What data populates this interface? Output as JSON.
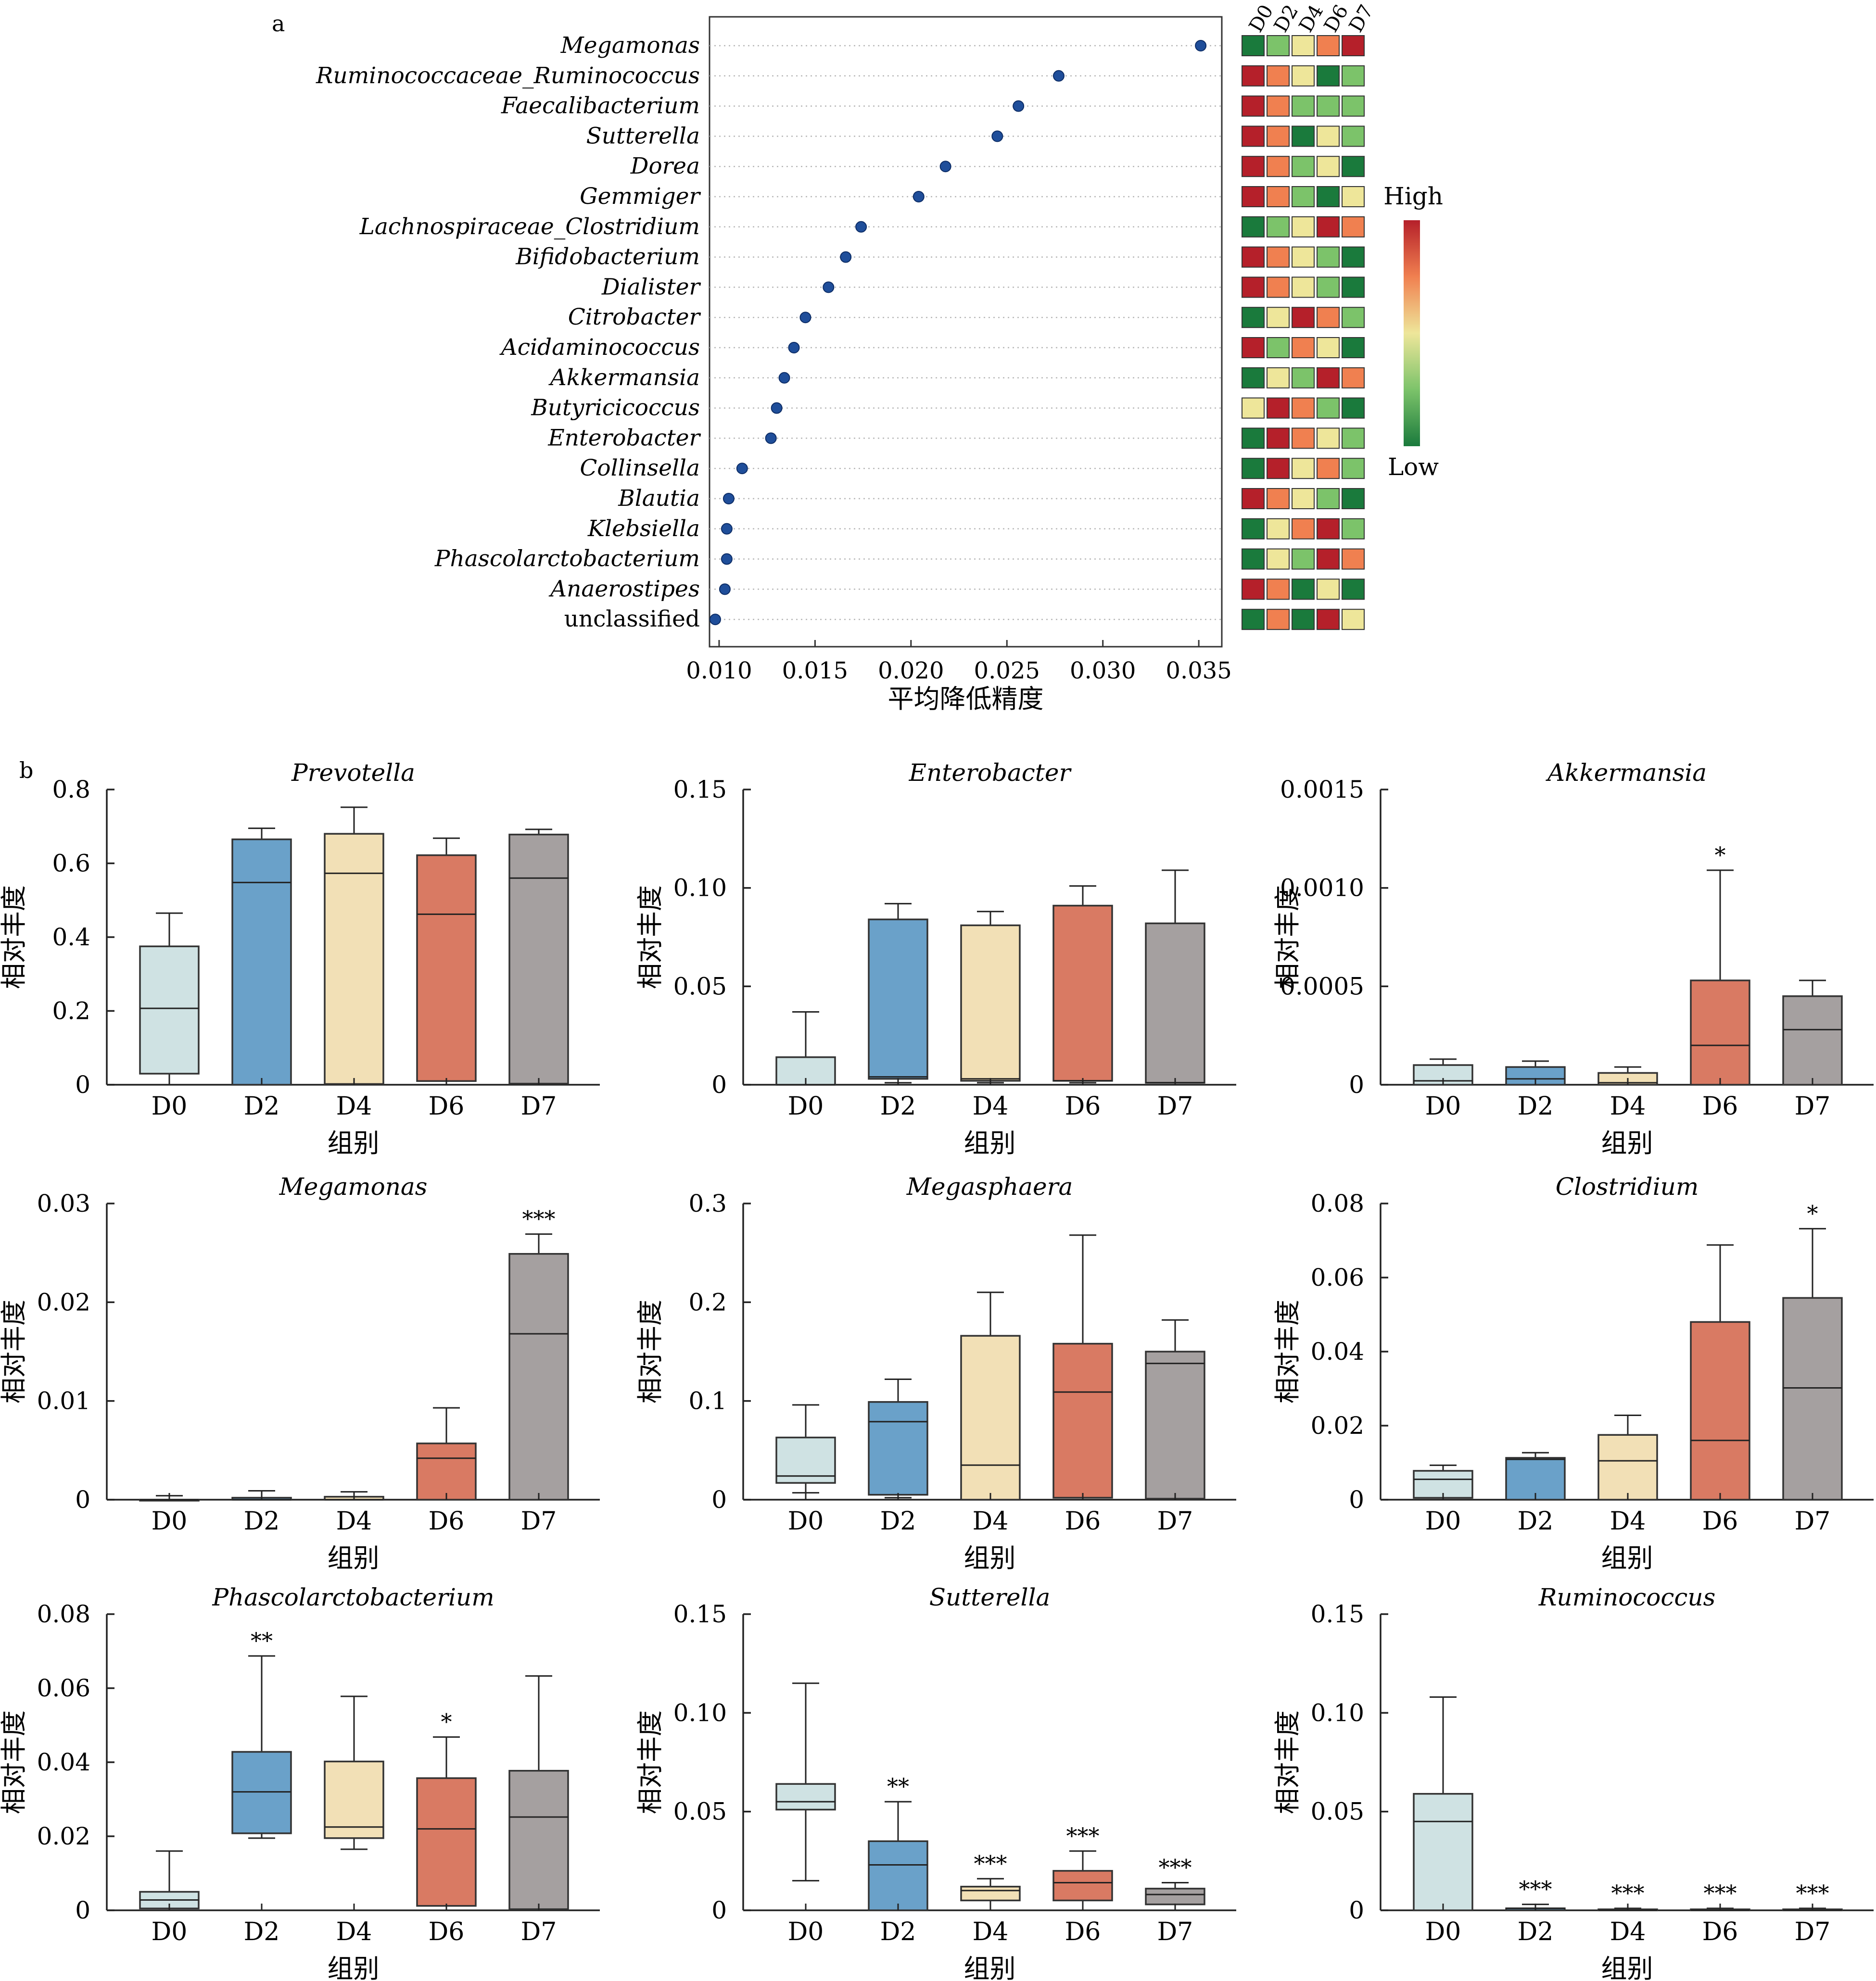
{
  "chart_data": [
    {
      "panel_label": "a",
      "type": "scatter",
      "subtype": "dot-plot with heatmap",
      "xlabel": "平均降低精度",
      "xlim": [
        0.0095,
        0.0362
      ],
      "xticks": [
        "0.010",
        "0.015",
        "0.020",
        "0.025",
        "0.030",
        "0.035"
      ],
      "xtick_values": [
        0.01,
        0.015,
        0.02,
        0.025,
        0.03,
        0.035
      ],
      "grid": "dotted horizontal guide lines",
      "point_color": "#1f4e9a",
      "taxa": [
        {
          "name": "Megamonas",
          "italic": true,
          "value": 0.0351,
          "heat": [
            0,
            1,
            2,
            3,
            4
          ]
        },
        {
          "name": "Ruminococcaceae_Ruminococcus",
          "italic": true,
          "value": 0.0277,
          "heat": [
            4,
            3,
            2,
            0,
            1
          ]
        },
        {
          "name": "Faecalibacterium",
          "italic": true,
          "value": 0.0256,
          "heat": [
            4,
            3,
            1,
            1,
            1
          ]
        },
        {
          "name": "Sutterella",
          "italic": true,
          "value": 0.0245,
          "heat": [
            4,
            3,
            0,
            2,
            1
          ]
        },
        {
          "name": "Dorea",
          "italic": true,
          "value": 0.0218,
          "heat": [
            4,
            3,
            1,
            2,
            0
          ]
        },
        {
          "name": "Gemmiger",
          "italic": true,
          "value": 0.0204,
          "heat": [
            4,
            3,
            1,
            0,
            2
          ]
        },
        {
          "name": "Lachnospiraceae_Clostridium",
          "italic": true,
          "value": 0.0174,
          "heat": [
            0,
            1,
            2,
            4,
            3
          ]
        },
        {
          "name": "Bifidobacterium",
          "italic": true,
          "value": 0.0166,
          "heat": [
            4,
            3,
            2,
            1,
            0
          ]
        },
        {
          "name": "Dialister",
          "italic": true,
          "value": 0.0157,
          "heat": [
            4,
            3,
            2,
            1,
            0
          ]
        },
        {
          "name": "Citrobacter",
          "italic": true,
          "value": 0.0145,
          "heat": [
            0,
            2,
            4,
            3,
            1
          ]
        },
        {
          "name": "Acidaminococcus",
          "italic": true,
          "value": 0.0139,
          "heat": [
            4,
            1,
            3,
            2,
            0
          ]
        },
        {
          "name": "Akkermansia",
          "italic": true,
          "value": 0.0134,
          "heat": [
            0,
            2,
            1,
            4,
            3
          ]
        },
        {
          "name": "Butyricicoccus",
          "italic": true,
          "value": 0.013,
          "heat": [
            2,
            4,
            3,
            1,
            0
          ]
        },
        {
          "name": "Enterobacter",
          "italic": true,
          "value": 0.0127,
          "heat": [
            0,
            4,
            3,
            2,
            1
          ]
        },
        {
          "name": "Collinsella",
          "italic": true,
          "value": 0.0112,
          "heat": [
            0,
            4,
            2,
            3,
            1
          ]
        },
        {
          "name": "Blautia",
          "italic": true,
          "value": 0.0105,
          "heat": [
            4,
            3,
            2,
            1,
            0
          ]
        },
        {
          "name": "Klebsiella",
          "italic": true,
          "value": 0.0104,
          "heat": [
            0,
            2,
            3,
            4,
            1
          ]
        },
        {
          "name": "Phascolarctobacterium",
          "italic": true,
          "value": 0.0104,
          "heat": [
            0,
            2,
            1,
            4,
            3
          ]
        },
        {
          "name": "Anaerostipes",
          "italic": true,
          "value": 0.0103,
          "heat": [
            4,
            3,
            0,
            2,
            0
          ]
        },
        {
          "name": "unclassified",
          "italic": false,
          "value": 0.0098,
          "heat": [
            0,
            3,
            0,
            4,
            2
          ]
        }
      ],
      "heatmap_columns": [
        "D0",
        "D2",
        "D4",
        "D6",
        "D7"
      ],
      "heat_colors": [
        "#1a7a3c",
        "#7cc36a",
        "#eee69a",
        "#f08050",
        "#b5202a"
      ],
      "legend": {
        "high": "High",
        "low": "Low",
        "gradient": [
          "#b5202a",
          "#f08050",
          "#eee69a",
          "#7cc36a",
          "#1a7a3c"
        ]
      }
    },
    {
      "panel_label": "b",
      "type": "box",
      "xlabel": "组别",
      "ylabel": "相对丰度",
      "groups": [
        "D0",
        "D2",
        "D4",
        "D6",
        "D7"
      ],
      "group_colors": [
        "#cfe2e3",
        "#6aa1c9",
        "#f2e0b6",
        "#d97a63",
        "#a5a0a0"
      ],
      "panels": [
        {
          "title": "Prevotella",
          "ylim": [
            0,
            0.8
          ],
          "yticks": [
            "0",
            "0.2",
            "0.4",
            "0.6",
            "0.8"
          ],
          "ytick_values": [
            0,
            0.2,
            0.4,
            0.6,
            0.8
          ],
          "boxes": [
            [
              0.0,
              0.03,
              0.207,
              0.375,
              0.465
            ],
            [
              0.0,
              0.0,
              0.548,
              0.665,
              0.695
            ],
            [
              0.0,
              0.002,
              0.573,
              0.68,
              0.752
            ],
            [
              0.0,
              0.01,
              0.462,
              0.622,
              0.668
            ],
            [
              0.0,
              0.003,
              0.56,
              0.678,
              0.692
            ]
          ],
          "sig": [
            "",
            "",
            "",
            "",
            ""
          ]
        },
        {
          "title": "Enterobacter",
          "ylim": [
            0,
            0.15
          ],
          "yticks": [
            "0",
            "0.05",
            "0.10",
            "0.15"
          ],
          "ytick_values": [
            0,
            0.05,
            0.1,
            0.15
          ],
          "boxes": [
            [
              0.0,
              0.0,
              0.0,
              0.014,
              0.037
            ],
            [
              0.001,
              0.003,
              0.004,
              0.084,
              0.092
            ],
            [
              0.001,
              0.002,
              0.003,
              0.081,
              0.088
            ],
            [
              0.001,
              0.002,
              0.002,
              0.091,
              0.101
            ],
            [
              0.0,
              0.001,
              0.001,
              0.082,
              0.109
            ]
          ],
          "sig": [
            "",
            "",
            "",
            "",
            ""
          ]
        },
        {
          "title": "Akkermansia",
          "ylim": [
            0,
            0.0015
          ],
          "yticks": [
            "0",
            "0.0005",
            "0.0010",
            "0.0015"
          ],
          "ytick_values": [
            0,
            0.0005,
            0.001,
            0.0015
          ],
          "boxes": [
            [
              0.0,
              0.0,
              2e-05,
              0.0001,
              0.00013
            ],
            [
              0.0,
              0.0,
              3e-05,
              9e-05,
              0.00012
            ],
            [
              0.0,
              0.0,
              1e-05,
              6e-05,
              9e-05
            ],
            [
              0.0,
              0.0,
              0.0002,
              0.00053,
              0.00109
            ],
            [
              0.0,
              0.0,
              0.00028,
              0.00045,
              0.00053
            ]
          ],
          "sig": [
            "",
            "",
            "",
            "*",
            ""
          ]
        },
        {
          "title": "Megamonas",
          "ylim": [
            0,
            0.03
          ],
          "yticks": [
            "0",
            "0.01",
            "0.02",
            "0.03"
          ],
          "ytick_values": [
            0,
            0.01,
            0.02,
            0.03
          ],
          "boxes": [
            [
              0.0,
              0.0,
              0.0,
              0.0,
              0.0004
            ],
            [
              0.0,
              0.0,
              0.0,
              0.0002,
              0.0009
            ],
            [
              0.0,
              0.0,
              0.0,
              0.0003,
              0.0008
            ],
            [
              0.0,
              0.0,
              0.0042,
              0.0057,
              0.0093
            ],
            [
              0.0,
              0.0,
              0.0168,
              0.0249,
              0.0269
            ]
          ],
          "sig": [
            "",
            "",
            "",
            "",
            "***"
          ]
        },
        {
          "title": "Megasphaera",
          "ylim": [
            0,
            0.3
          ],
          "yticks": [
            "0",
            "0.1",
            "0.2",
            "0.3"
          ],
          "ytick_values": [
            0,
            0.1,
            0.2,
            0.3
          ],
          "boxes": [
            [
              0.007,
              0.017,
              0.024,
              0.063,
              0.096
            ],
            [
              0.002,
              0.005,
              0.079,
              0.099,
              0.122
            ],
            [
              0.0,
              0.0,
              0.035,
              0.166,
              0.21
            ],
            [
              0.0,
              0.002,
              0.109,
              0.158,
              0.268
            ],
            [
              0.0,
              0.001,
              0.138,
              0.15,
              0.182
            ]
          ],
          "sig": [
            "",
            "",
            "",
            "",
            ""
          ]
        },
        {
          "title": "Clostridium",
          "ylim": [
            0,
            0.08
          ],
          "yticks": [
            "0",
            "0.02",
            "0.04",
            "0.06",
            "0.08"
          ],
          "ytick_values": [
            0,
            0.02,
            0.04,
            0.06,
            0.08
          ],
          "boxes": [
            [
              0.0,
              0.0005,
              0.0055,
              0.0078,
              0.0093
            ],
            [
              0.0,
              0.0,
              0.0109,
              0.0113,
              0.0127
            ],
            [
              0.0,
              0.0,
              0.0105,
              0.0175,
              0.0228
            ],
            [
              0.0,
              0.0,
              0.016,
              0.048,
              0.0688
            ],
            [
              0.0,
              0.0,
              0.0302,
              0.0545,
              0.0732
            ]
          ],
          "sig": [
            "",
            "",
            "",
            "",
            "*"
          ]
        },
        {
          "title": "Phascolarctobacterium",
          "ylim": [
            0,
            0.08
          ],
          "yticks": [
            "0",
            "0.02",
            "0.04",
            "0.06",
            "0.08"
          ],
          "ytick_values": [
            0,
            0.02,
            0.04,
            0.06,
            0.08
          ],
          "boxes": [
            [
              0.0,
              0.0005,
              0.0028,
              0.005,
              0.016
            ],
            [
              0.0195,
              0.0208,
              0.032,
              0.0428,
              0.0687
            ],
            [
              0.0165,
              0.0195,
              0.0225,
              0.0402,
              0.0578
            ],
            [
              0.0,
              0.0012,
              0.022,
              0.0357,
              0.0468
            ],
            [
              0.0,
              0.0003,
              0.0252,
              0.0377,
              0.0633
            ]
          ],
          "sig": [
            "",
            "**",
            "",
            "*",
            ""
          ]
        },
        {
          "title": "Sutterella",
          "ylim": [
            0,
            0.15
          ],
          "yticks": [
            "0",
            "0.05",
            "0.10",
            "0.15"
          ],
          "ytick_values": [
            0,
            0.05,
            0.1,
            0.15
          ],
          "boxes": [
            [
              0.015,
              0.051,
              0.055,
              0.064,
              0.115
            ],
            [
              0.0,
              0.0,
              0.023,
              0.035,
              0.055
            ],
            [
              0.0,
              0.005,
              0.01,
              0.012,
              0.016
            ],
            [
              0.0,
              0.005,
              0.014,
              0.02,
              0.03
            ],
            [
              0.0,
              0.003,
              0.008,
              0.011,
              0.014
            ]
          ],
          "sig": [
            "",
            "**",
            "***",
            "***",
            "***"
          ]
        },
        {
          "title": "Ruminococcus",
          "ylim": [
            0,
            0.15
          ],
          "yticks": [
            "0",
            "0.05",
            "0.10",
            "0.15"
          ],
          "ytick_values": [
            0,
            0.05,
            0.1,
            0.15
          ],
          "boxes": [
            [
              0.0,
              0.0,
              0.045,
              0.059,
              0.108
            ],
            [
              0.0,
              0.0,
              0.001,
              0.001,
              0.003
            ],
            [
              0.0,
              0.0,
              0.0,
              0.0005,
              0.001
            ],
            [
              0.0,
              0.0,
              0.0,
              0.0005,
              0.001
            ],
            [
              0.0,
              0.0,
              0.0,
              0.0005,
              0.001
            ]
          ],
          "sig": [
            "",
            "***",
            "***",
            "***",
            "***"
          ]
        }
      ]
    }
  ]
}
